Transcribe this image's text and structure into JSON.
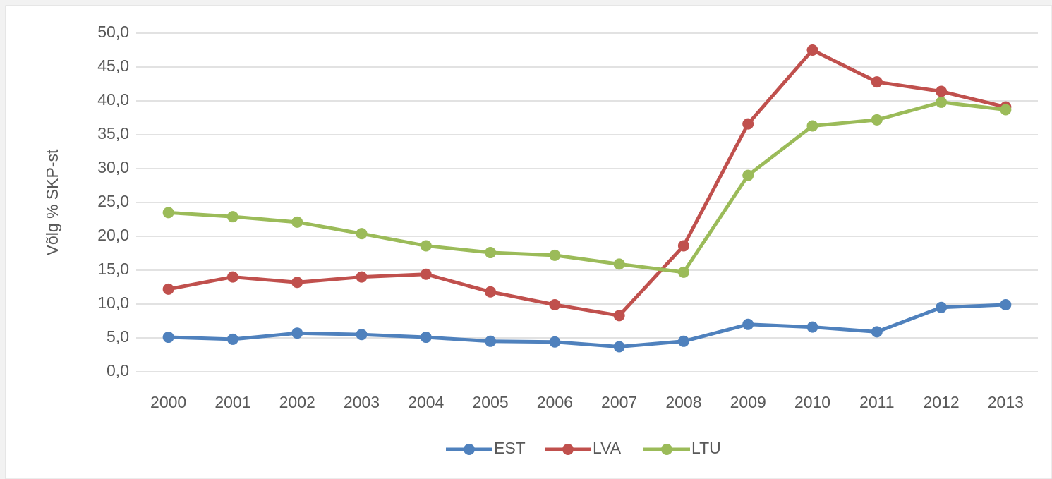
{
  "chart_data": {
    "type": "line",
    "y_label": "Võlg % SKP-st",
    "categories": [
      "2000",
      "2001",
      "2002",
      "2003",
      "2004",
      "2005",
      "2006",
      "2007",
      "2008",
      "2009",
      "2010",
      "2011",
      "2012",
      "2013"
    ],
    "series": [
      {
        "name": "EST",
        "color": "#4f81bd",
        "values": [
          5.1,
          4.8,
          5.7,
          5.5,
          5.1,
          4.5,
          4.4,
          3.7,
          4.5,
          7.0,
          6.6,
          5.9,
          9.5,
          9.9
        ]
      },
      {
        "name": "LVA",
        "color": "#c0504d",
        "values": [
          12.2,
          14.0,
          13.2,
          14.0,
          14.4,
          11.8,
          9.9,
          8.3,
          18.6,
          36.6,
          47.5,
          42.8,
          41.4,
          39.1
        ]
      },
      {
        "name": "LTU",
        "color": "#9bbb59",
        "values": [
          23.5,
          22.9,
          22.1,
          20.4,
          18.6,
          17.6,
          17.2,
          15.9,
          14.7,
          29.0,
          36.3,
          37.2,
          39.8,
          38.7
        ]
      }
    ],
    "ylim": [
      0,
      50
    ],
    "yticks": [
      {
        "value": 0,
        "label": "0,0"
      },
      {
        "value": 5,
        "label": "5,0"
      },
      {
        "value": 10,
        "label": "10,0"
      },
      {
        "value": 15,
        "label": "15,0"
      },
      {
        "value": 20,
        "label": "20,0"
      },
      {
        "value": 25,
        "label": "25,0"
      },
      {
        "value": 30,
        "label": "30,0"
      },
      {
        "value": 35,
        "label": "35,0"
      },
      {
        "value": 40,
        "label": "40,0"
      },
      {
        "value": 45,
        "label": "45,0"
      },
      {
        "value": 50,
        "label": "50,0"
      }
    ],
    "grid": true,
    "legend": "bottom"
  }
}
